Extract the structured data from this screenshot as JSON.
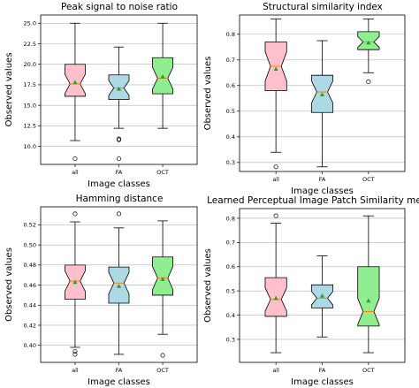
{
  "chart_data": [
    {
      "type": "box",
      "title": "Peak signal to noise ratio",
      "xlabel": "Image classes",
      "ylabel": "Observed values",
      "ylim": [
        7.8,
        26.0
      ],
      "yticks": [
        "10.0",
        "12.5",
        "15.0",
        "17.5",
        "20.0",
        "22.5",
        "25.0"
      ],
      "ytick_values": [
        10.0,
        12.5,
        15.0,
        17.5,
        20.0,
        22.5,
        25.0
      ],
      "grid": true,
      "categories": [
        "all",
        "FA",
        "OCT"
      ],
      "fill_colors": [
        "#ffc0cb",
        "#add8e6",
        "#90ee90"
      ],
      "boxes": [
        {
          "name": "all",
          "whislo": 10.7,
          "q1": 16.1,
          "med": 17.6,
          "q3": 20.0,
          "whishi": 25.0,
          "mean": 17.8,
          "fliers": [
            8.5
          ]
        },
        {
          "name": "FA",
          "whislo": 12.2,
          "q1": 15.7,
          "med": 17.1,
          "q3": 18.7,
          "whishi": 22.1,
          "mean": 17.0,
          "fliers": [
            10.8,
            10.9,
            8.5
          ]
        },
        {
          "name": "OCT",
          "whislo": 12.2,
          "q1": 16.4,
          "med": 18.3,
          "q3": 20.8,
          "whishi": 25.0,
          "mean": 18.5,
          "fliers": []
        }
      ]
    },
    {
      "type": "box",
      "title": "Structural similarity index",
      "xlabel": "Image classes",
      "ylabel": "Observed values",
      "ylim": [
        0.265,
        0.875
      ],
      "yticks": [
        "0.3",
        "0.4",
        "0.5",
        "0.6",
        "0.7",
        "0.8"
      ],
      "ytick_values": [
        0.3,
        0.4,
        0.5,
        0.6,
        0.7,
        0.8
      ],
      "grid": true,
      "categories": [
        "all",
        "FA",
        "OCT"
      ],
      "fill_colors": [
        "#ffc0cb",
        "#add8e6",
        "#90ee90"
      ],
      "boxes": [
        {
          "name": "all",
          "whislo": 0.34,
          "q1": 0.58,
          "med": 0.675,
          "q3": 0.77,
          "whishi": 0.86,
          "mean": 0.665,
          "fliers": [
            0.283
          ]
        },
        {
          "name": "FA",
          "whislo": 0.283,
          "q1": 0.495,
          "med": 0.575,
          "q3": 0.64,
          "whishi": 0.775,
          "mean": 0.565,
          "fliers": []
        },
        {
          "name": "OCT",
          "whislo": 0.65,
          "q1": 0.74,
          "med": 0.77,
          "q3": 0.81,
          "whishi": 0.86,
          "mean": 0.767,
          "fliers": [
            0.615
          ]
        }
      ]
    },
    {
      "type": "box",
      "title": "Hamming distance",
      "xlabel": "Image classes",
      "ylabel": "Observed values",
      "ylim": [
        0.383,
        0.538
      ],
      "yticks": [
        "0.40",
        "0.42",
        "0.44",
        "0.46",
        "0.48",
        "0.50",
        "0.52"
      ],
      "ytick_values": [
        0.4,
        0.42,
        0.44,
        0.46,
        0.48,
        0.5,
        0.52
      ],
      "grid": true,
      "categories": [
        "all",
        "FA",
        "OCT"
      ],
      "fill_colors": [
        "#ffc0cb",
        "#add8e6",
        "#90ee90"
      ],
      "boxes": [
        {
          "name": "all",
          "whislo": 0.398,
          "q1": 0.446,
          "med": 0.464,
          "q3": 0.48,
          "whishi": 0.523,
          "mean": 0.463,
          "fliers": [
            0.531,
            0.394,
            0.391
          ]
        },
        {
          "name": "FA",
          "whislo": 0.391,
          "q1": 0.442,
          "med": 0.462,
          "q3": 0.478,
          "whishi": 0.517,
          "mean": 0.459,
          "fliers": [
            0.531
          ]
        },
        {
          "name": "OCT",
          "whislo": 0.411,
          "q1": 0.45,
          "med": 0.467,
          "q3": 0.488,
          "whishi": 0.524,
          "mean": 0.466,
          "fliers": [
            0.39
          ]
        }
      ]
    },
    {
      "type": "box",
      "title": "Learned Perceptual Image Patch Similarity metric",
      "xlabel": "Image classes",
      "ylabel": "Observed values",
      "ylim": [
        0.205,
        0.84
      ],
      "yticks": [
        "0.3",
        "0.4",
        "0.5",
        "0.6",
        "0.7",
        "0.8"
      ],
      "ytick_values": [
        0.3,
        0.4,
        0.5,
        0.6,
        0.7,
        0.8
      ],
      "grid": true,
      "categories": [
        "all",
        "FA",
        "OCT"
      ],
      "fill_colors": [
        "#ffc0cb",
        "#add8e6",
        "#90ee90"
      ],
      "boxes": [
        {
          "name": "all",
          "whislo": 0.245,
          "q1": 0.395,
          "med": 0.465,
          "q3": 0.555,
          "whishi": 0.78,
          "mean": 0.47,
          "fliers": [
            0.81
          ]
        },
        {
          "name": "FA",
          "whislo": 0.31,
          "q1": 0.43,
          "med": 0.47,
          "q3": 0.525,
          "whishi": 0.645,
          "mean": 0.48,
          "fliers": []
        },
        {
          "name": "OCT",
          "whislo": 0.245,
          "q1": 0.355,
          "med": 0.415,
          "q3": 0.6,
          "whishi": 0.81,
          "mean": 0.46,
          "fliers": []
        }
      ]
    }
  ]
}
